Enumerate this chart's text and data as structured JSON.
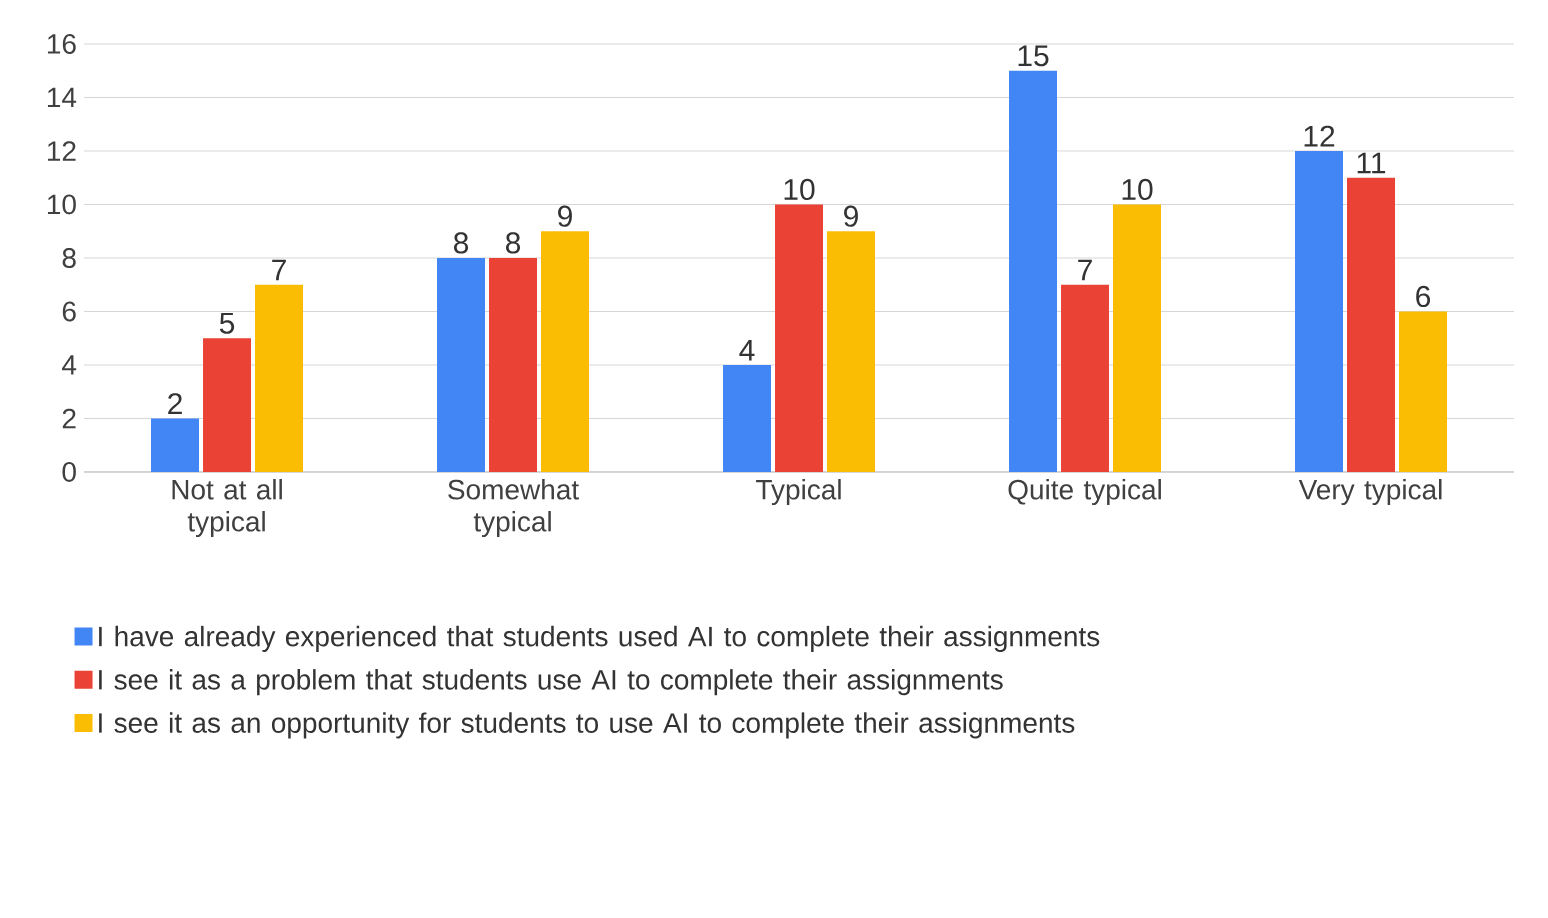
{
  "chart_data": {
    "type": "bar",
    "categories": [
      "Not at all typical",
      "Somewhat typical",
      "Typical",
      "Quite typical",
      "Very typical"
    ],
    "series": [
      {
        "name": "I have already experienced that students used AI to complete their assignments",
        "color": "#4285f4",
        "values": [
          2,
          8,
          4,
          15,
          12
        ]
      },
      {
        "name": "I see it as a problem that students use AI to complete their assignments",
        "color": "#ea4335",
        "values": [
          5,
          8,
          10,
          7,
          11
        ]
      },
      {
        "name": "I see it as an opportunity for students to use AI to complete their assignments",
        "color": "#fbbc04",
        "values": [
          7,
          9,
          9,
          10,
          6
        ]
      }
    ],
    "ylim": [
      0,
      16
    ],
    "yticks": [
      0,
      2,
      4,
      6,
      8,
      10,
      12,
      14,
      16
    ],
    "grid": "y",
    "legend": "bottom",
    "data_labels": true
  }
}
